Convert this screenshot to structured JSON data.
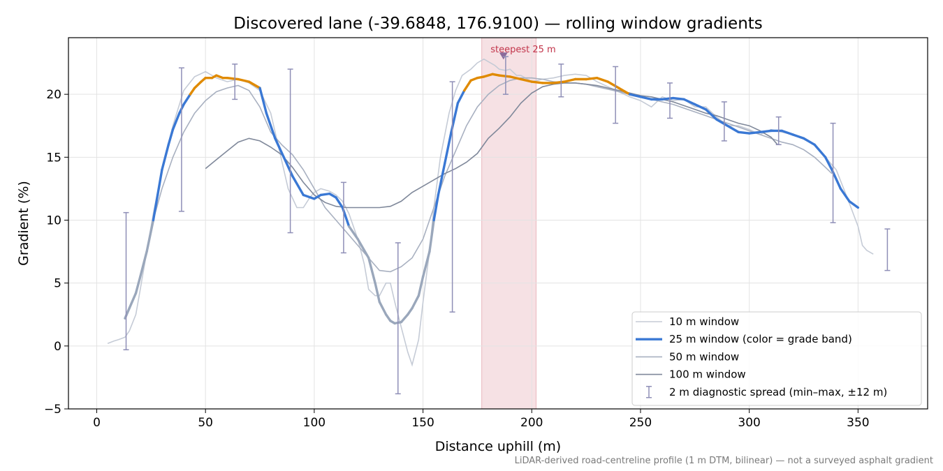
{
  "chart_data": {
    "type": "line",
    "title": "Discovered lane (-39.6848, 176.9100) — rolling window gradients",
    "xlabel": "Distance uphill (m)",
    "ylabel": "Gradient (%)",
    "xlim": [
      -13,
      382
    ],
    "ylim": [
      -5,
      24.5
    ],
    "x_ticks": [
      0,
      50,
      100,
      150,
      200,
      250,
      300,
      350
    ],
    "y_ticks": [
      -5,
      0,
      5,
      10,
      15,
      20
    ],
    "grid": true,
    "legend_position": "lower right",
    "footnote": "LiDAR-derived road-centreline profile (1 m DTM, bilinear) — not a surveyed asphalt gradient",
    "highlight": {
      "x_start": 177,
      "x_end": 202,
      "label": "steepest 25 m",
      "marker": [
        187,
        23.1
      ],
      "color": "#c2344a"
    },
    "band_colors": {
      "high": "#e08a00",
      "mid": "#3a78d4",
      "low": "#9aa7bb",
      "threshold_high": 20,
      "threshold_low": 10
    },
    "series": [
      {
        "name": "10 m window",
        "color": "#c5cbd6",
        "x": [
          5,
          8,
          10,
          13,
          15,
          18,
          20,
          23,
          26,
          30,
          35,
          40,
          45,
          50,
          55,
          60,
          65,
          70,
          75,
          80,
          84,
          88,
          92,
          95,
          98,
          100,
          103,
          107,
          110,
          113,
          116,
          120,
          123,
          125,
          128,
          130,
          133,
          135,
          137,
          140,
          143,
          145,
          148,
          150,
          153,
          155,
          158,
          162,
          165,
          168,
          172,
          175,
          178,
          180,
          183,
          185,
          188,
          190,
          193,
          195,
          200,
          205,
          210,
          215,
          220,
          225,
          230,
          235,
          240,
          245,
          250,
          255,
          260,
          265,
          270,
          275,
          280,
          285,
          290,
          295,
          300,
          305,
          310,
          315,
          320,
          325,
          330,
          335,
          340,
          345,
          350,
          352,
          354,
          357
        ],
        "y": [
          0.2,
          0.4,
          0.5,
          0.7,
          1.2,
          2.5,
          4.5,
          7.5,
          10.5,
          14.0,
          17.5,
          20.3,
          21.4,
          21.8,
          21.3,
          21.0,
          21.2,
          20.9,
          20.3,
          18.5,
          15.5,
          12.5,
          11.0,
          11.0,
          11.8,
          12.2,
          12.5,
          12.3,
          12.0,
          11.5,
          10.5,
          8.5,
          6.5,
          4.5,
          4.0,
          4.0,
          5.0,
          5.0,
          3.5,
          1.5,
          -0.5,
          -1.5,
          0.5,
          3.5,
          7.5,
          11.0,
          15.0,
          18.5,
          20.3,
          21.5,
          22.0,
          22.5,
          22.8,
          22.6,
          22.3,
          22.0,
          21.9,
          22.0,
          21.5,
          21.5,
          21.0,
          21.2,
          21.3,
          21.5,
          21.6,
          21.5,
          21.0,
          20.6,
          20.2,
          19.8,
          19.5,
          19.0,
          19.8,
          19.5,
          19.6,
          19.0,
          19.0,
          18.2,
          17.5,
          17.5,
          17.2,
          16.8,
          17.2,
          17.0,
          16.8,
          16.5,
          16.0,
          15.0,
          14.0,
          11.8,
          9.5,
          8.0,
          7.6,
          7.3
        ]
      },
      {
        "name": "25 m window (color = grade band)",
        "color": "#3a78d4",
        "x": [
          13,
          15,
          18,
          20,
          23,
          26,
          28,
          30,
          33,
          35,
          38,
          40,
          43,
          45,
          48,
          50,
          53,
          55,
          58,
          60,
          65,
          70,
          75,
          78,
          82,
          86,
          90,
          95,
          100,
          103,
          107,
          110,
          113,
          116,
          120,
          125,
          128,
          130,
          133,
          135,
          137,
          140,
          143,
          145,
          148,
          150,
          153,
          155,
          157,
          160,
          163,
          166,
          169,
          172,
          175,
          178,
          182,
          185,
          190,
          195,
          200,
          205,
          210,
          215,
          220,
          225,
          230,
          235,
          240,
          245,
          250,
          255,
          260,
          265,
          270,
          275,
          280,
          285,
          290,
          295,
          300,
          305,
          310,
          315,
          320,
          325,
          330,
          335,
          338,
          342,
          346,
          350
        ],
        "y": [
          2.2,
          3.0,
          4.2,
          5.5,
          7.5,
          10.0,
          12.0,
          14.0,
          16.0,
          17.2,
          18.5,
          19.2,
          20.0,
          20.5,
          21.0,
          21.3,
          21.3,
          21.5,
          21.3,
          21.3,
          21.2,
          21.0,
          20.5,
          18.5,
          16.5,
          15.0,
          13.5,
          12.0,
          11.7,
          12.0,
          12.1,
          11.8,
          11.0,
          9.5,
          8.5,
          7.0,
          5.0,
          3.5,
          2.5,
          2.0,
          1.8,
          1.9,
          2.5,
          3.0,
          4.0,
          5.5,
          7.5,
          10.0,
          12.0,
          14.5,
          17.0,
          19.3,
          20.3,
          21.1,
          21.3,
          21.4,
          21.6,
          21.5,
          21.4,
          21.2,
          21.0,
          20.9,
          20.9,
          21.0,
          21.2,
          21.2,
          21.3,
          21.0,
          20.5,
          20.0,
          19.8,
          19.6,
          19.6,
          19.7,
          19.6,
          19.2,
          18.8,
          18.0,
          17.5,
          17.0,
          16.9,
          17.0,
          17.1,
          17.1,
          16.8,
          16.5,
          16.0,
          15.0,
          14.0,
          12.5,
          11.5,
          11.0
        ]
      },
      {
        "name": "50 m window",
        "color": "#a8b0c0",
        "x": [
          26,
          30,
          35,
          40,
          45,
          50,
          55,
          60,
          65,
          70,
          75,
          80,
          85,
          90,
          95,
          100,
          105,
          110,
          115,
          120,
          125,
          130,
          135,
          140,
          145,
          150,
          155,
          160,
          165,
          170,
          175,
          180,
          185,
          190,
          195,
          200,
          205,
          210,
          215,
          220,
          225,
          230,
          235,
          240,
          245,
          250,
          255,
          260,
          265,
          270,
          275,
          280,
          285,
          290,
          295,
          300,
          305,
          310,
          315,
          320,
          325,
          330,
          335,
          338
        ],
        "y": [
          10.0,
          12.5,
          15.0,
          17.0,
          18.5,
          19.5,
          20.2,
          20.5,
          20.7,
          20.3,
          19.0,
          17.0,
          16.0,
          15.2,
          14.0,
          12.5,
          11.0,
          10.0,
          9.0,
          8.0,
          7.0,
          6.0,
          5.9,
          6.3,
          7.0,
          8.5,
          11.0,
          13.5,
          15.5,
          17.5,
          19.0,
          20.0,
          20.7,
          21.1,
          21.3,
          21.3,
          21.2,
          21.0,
          20.9,
          20.9,
          20.8,
          20.6,
          20.4,
          20.2,
          20.0,
          19.8,
          19.6,
          19.4,
          19.2,
          18.9,
          18.6,
          18.3,
          18.0,
          17.7,
          17.4,
          17.1,
          16.8,
          16.5,
          16.2,
          16.0,
          15.6,
          15.0,
          14.2,
          13.7
        ]
      },
      {
        "name": "100 m window",
        "color": "#7f889a",
        "x": [
          50,
          55,
          60,
          65,
          70,
          75,
          80,
          85,
          90,
          95,
          100,
          105,
          110,
          115,
          120,
          125,
          130,
          135,
          140,
          145,
          150,
          155,
          160,
          165,
          170,
          175,
          180,
          185,
          190,
          195,
          200,
          205,
          210,
          215,
          220,
          225,
          230,
          235,
          240,
          245,
          250,
          255,
          260,
          265,
          270,
          275,
          280,
          285,
          290,
          295,
          300,
          305,
          310,
          313
        ],
        "y": [
          14.1,
          14.8,
          15.5,
          16.2,
          16.5,
          16.3,
          15.8,
          15.2,
          14.2,
          13.0,
          12.0,
          11.4,
          11.1,
          11.0,
          11.0,
          11.0,
          11.0,
          11.1,
          11.5,
          12.2,
          12.7,
          13.2,
          13.7,
          14.1,
          14.6,
          15.3,
          16.5,
          17.3,
          18.2,
          19.3,
          20.1,
          20.6,
          20.8,
          20.9,
          20.9,
          20.8,
          20.7,
          20.5,
          20.3,
          20.1,
          19.9,
          19.8,
          19.6,
          19.4,
          19.1,
          18.8,
          18.5,
          18.3,
          18.0,
          17.7,
          17.5,
          17.1,
          16.6,
          16.0
        ]
      },
      {
        "name": "2 m diagnostic spread (min–max, ±12 m)",
        "color": "#8f8fb7",
        "x": [
          13.5,
          39,
          63.5,
          89,
          113.5,
          138.5,
          163.5,
          188,
          213.5,
          238.5,
          263.5,
          288.5,
          313.5,
          338.5,
          363.5
        ],
        "low": [
          -0.3,
          10.7,
          19.6,
          9.0,
          7.4,
          -3.8,
          2.7,
          20.0,
          19.8,
          17.7,
          18.1,
          16.3,
          16.0,
          9.8,
          6.0
        ],
        "high": [
          10.6,
          22.1,
          22.4,
          22.0,
          13.0,
          8.2,
          21.0,
          23.0,
          22.4,
          22.2,
          20.9,
          19.4,
          18.2,
          17.7,
          9.3
        ]
      }
    ]
  }
}
